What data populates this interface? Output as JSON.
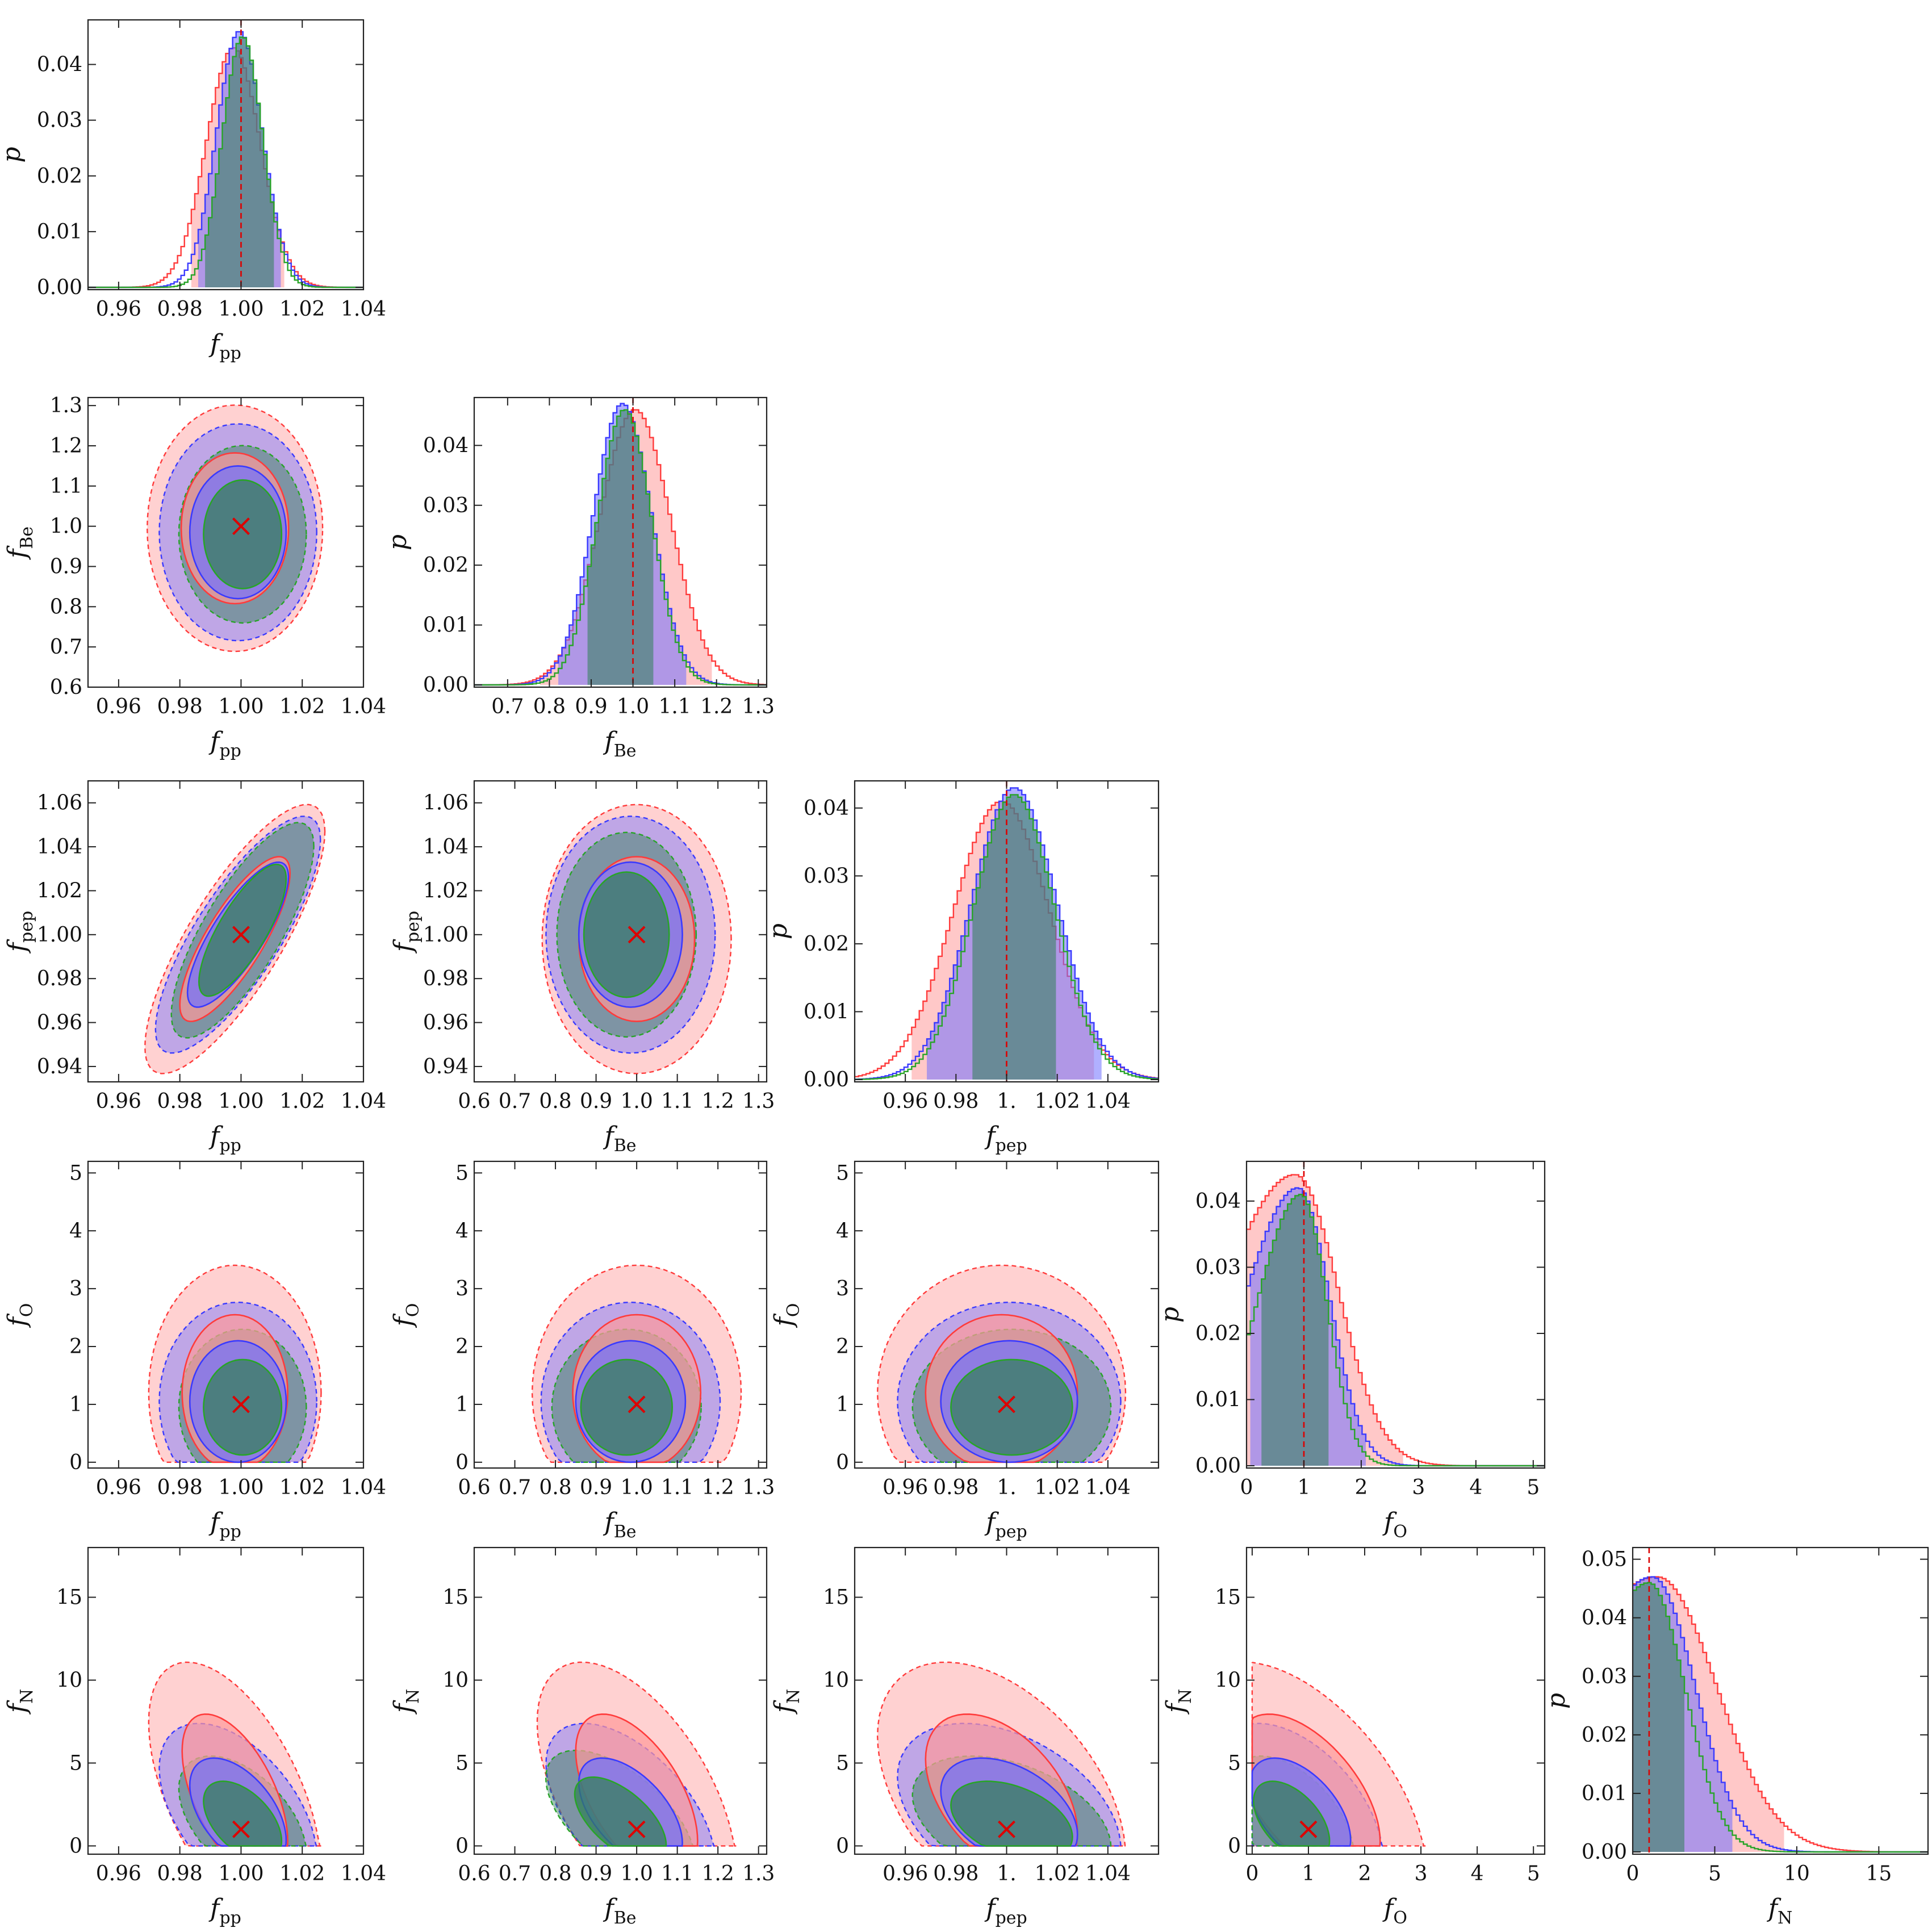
{
  "figure": {
    "colors": {
      "red": "#ff3b3b",
      "red_fill": "#ff9a9a",
      "blue": "#3a3aff",
      "blue_fill": "#7070ff",
      "green": "#28a428",
      "green_fill": "#2f7f55",
      "truth": "#dd0000"
    }
  },
  "chart_data": {
    "type": "corner",
    "parameters": [
      {
        "key": "pp",
        "symbol": "f",
        "sub": "pp",
        "truth": 1.0,
        "range": [
          0.95,
          1.04
        ],
        "ticks": [
          0.96,
          0.98,
          1.0,
          1.02,
          1.04
        ],
        "tick_labels": [
          "0.96",
          "0.98",
          "1.00",
          "1.02",
          "1.04"
        ],
        "diag_ticks": [
          0.96,
          0.98,
          1.0,
          1.02,
          1.04
        ],
        "diag_tick_labels": [
          "0.96",
          "0.98",
          "1.00",
          "1.02",
          "1.04"
        ]
      },
      {
        "key": "Be",
        "symbol": "f",
        "sub": "Be",
        "truth": 1.0,
        "range": [
          0.6,
          1.32
        ],
        "ticks": [
          0.6,
          0.7,
          0.8,
          0.9,
          1.0,
          1.1,
          1.2,
          1.3
        ],
        "tick_labels": [
          "0.6",
          "0.7",
          "0.8",
          "0.9",
          "1.0",
          "1.1",
          "1.2",
          "1.3"
        ],
        "diag_ticks": [
          0.7,
          0.8,
          0.9,
          1.0,
          1.1,
          1.2,
          1.3
        ],
        "diag_tick_labels": [
          "0.7",
          "0.8",
          "0.9",
          "1.0",
          "1.1",
          "1.2",
          "1.3"
        ],
        "diag_range": [
          0.62,
          1.32
        ],
        "y_range": [
          0.6,
          1.32
        ],
        "y_ticks": [
          0.6,
          0.7,
          0.8,
          0.9,
          1.0,
          1.1,
          1.2,
          1.3
        ],
        "y_tick_labels": [
          "0.6",
          "0.7",
          "0.8",
          "0.9",
          "1.0",
          "1.1",
          "1.2",
          "1.3"
        ]
      },
      {
        "key": "pep",
        "symbol": "f",
        "sub": "pep",
        "truth": 1.0,
        "range": [
          0.94,
          1.06
        ],
        "ticks": [
          0.96,
          0.98,
          1.0,
          1.02,
          1.04
        ],
        "tick_labels": [
          "0.96",
          "0.98",
          "1.",
          "1.02",
          "1.04"
        ],
        "diag_ticks": [
          0.96,
          0.98,
          1.0,
          1.02,
          1.04
        ],
        "diag_tick_labels": [
          "0.96",
          "0.98",
          "1.",
          "1.02",
          "1.04"
        ],
        "diag_range": [
          0.94,
          1.06
        ],
        "y_range": [
          0.933,
          1.07
        ],
        "y_ticks": [
          0.94,
          0.96,
          0.98,
          1.0,
          1.02,
          1.04,
          1.06
        ],
        "y_tick_labels": [
          "0.94",
          "0.96",
          "0.98",
          "1.00",
          "1.02",
          "1.04",
          "1.06"
        ]
      },
      {
        "key": "O",
        "symbol": "f",
        "sub": "O",
        "truth": 1.0,
        "range": [
          -0.1,
          5.2
        ],
        "ticks": [
          0,
          1,
          2,
          3,
          4,
          5
        ],
        "tick_labels": [
          "0",
          "1",
          "2",
          "3",
          "4",
          "5"
        ],
        "diag_ticks": [
          0,
          1,
          2,
          3,
          4,
          5
        ],
        "diag_tick_labels": [
          "0",
          "1",
          "2",
          "3",
          "4",
          "5"
        ],
        "diag_range": [
          0,
          5.2
        ],
        "y_range": [
          -0.1,
          5.2
        ],
        "y_ticks": [
          0,
          1,
          2,
          3,
          4,
          5
        ],
        "y_tick_labels": [
          "0",
          "1",
          "2",
          "3",
          "4",
          "5"
        ]
      },
      {
        "key": "N",
        "symbol": "f",
        "sub": "N",
        "truth": 1.0,
        "range": [
          -0.5,
          18
        ],
        "ticks": [
          0,
          5,
          10,
          15
        ],
        "tick_labels": [
          "0",
          "5",
          "10",
          "15"
        ],
        "diag_ticks": [
          0,
          5,
          10,
          15
        ],
        "diag_tick_labels": [
          "0",
          "5",
          "10",
          "15"
        ],
        "diag_range": [
          0,
          18
        ],
        "y_range": [
          -0.5,
          18
        ],
        "y_ticks": [
          0,
          5,
          10,
          15
        ],
        "y_tick_labels": [
          "0",
          "5",
          "10",
          "15"
        ]
      }
    ],
    "diagonal_ylabel": "p",
    "diagonal": [
      {
        "param": 0,
        "ymax": 0.048,
        "yticks": [
          0,
          0.01,
          0.02,
          0.03,
          0.04
        ],
        "ytick_labels": [
          "0.00",
          "0.01",
          "0.02",
          "0.03",
          "0.04"
        ],
        "series": [
          {
            "name": "red",
            "mean": 0.9975,
            "sd": 0.0088,
            "peak": 0.043,
            "ci": [
              0.9835,
              1.0145
            ]
          },
          {
            "name": "blue",
            "mean": 0.9995,
            "sd": 0.0075,
            "peak": 0.046,
            "ci": [
              0.9865,
              1.0125
            ]
          },
          {
            "name": "green",
            "mean": 1.0005,
            "sd": 0.0066,
            "peak": 0.045,
            "ci": [
              0.9885,
              1.0105
            ]
          }
        ]
      },
      {
        "param": 1,
        "ymax": 0.048,
        "yticks": [
          0,
          0.01,
          0.02,
          0.03,
          0.04
        ],
        "ytick_labels": [
          "0.00",
          "0.01",
          "0.02",
          "0.03",
          "0.04"
        ],
        "series": [
          {
            "name": "red",
            "mean": 1.005,
            "sd": 0.085,
            "peak": 0.046,
            "ci": [
              0.78,
              1.19
            ]
          },
          {
            "name": "blue",
            "mean": 0.975,
            "sd": 0.07,
            "peak": 0.047,
            "ci": [
              0.82,
              1.13
            ]
          },
          {
            "name": "green",
            "mean": 0.98,
            "sd": 0.065,
            "peak": 0.046,
            "ci": [
              0.89,
              1.05
            ]
          }
        ]
      },
      {
        "param": 2,
        "ymax": 0.044,
        "yticks": [
          0,
          0.01,
          0.02,
          0.03,
          0.04
        ],
        "ytick_labels": [
          "0.00",
          "0.01",
          "0.02",
          "0.03",
          "0.04"
        ],
        "series": [
          {
            "name": "red",
            "mean": 0.998,
            "sd": 0.019,
            "peak": 0.041,
            "ci": [
              0.963,
              1.034
            ]
          },
          {
            "name": "blue",
            "mean": 1.003,
            "sd": 0.017,
            "peak": 0.043,
            "ci": [
              0.968,
              1.038
            ]
          },
          {
            "name": "green",
            "mean": 1.003,
            "sd": 0.016,
            "peak": 0.042,
            "ci": [
              0.986,
              1.019
            ]
          }
        ]
      },
      {
        "param": 3,
        "ymax": 0.046,
        "yticks": [
          0,
          0.01,
          0.02,
          0.03,
          0.04
        ],
        "ytick_labels": [
          "0.00",
          "0.01",
          "0.02",
          "0.03",
          "0.04"
        ],
        "series": [
          {
            "name": "red",
            "mean": 0.85,
            "sd": 0.75,
            "peak": 0.044,
            "ci": [
              0.0,
              2.75
            ]
          },
          {
            "name": "blue",
            "mean": 0.9,
            "sd": 0.55,
            "peak": 0.042,
            "ci": [
              0.05,
              2.1
            ]
          },
          {
            "name": "green",
            "mean": 0.95,
            "sd": 0.45,
            "peak": 0.041,
            "ci": [
              0.25,
              1.45
            ]
          }
        ]
      },
      {
        "param": 4,
        "ymax": 0.052,
        "yticks": [
          0,
          0.01,
          0.02,
          0.03,
          0.04,
          0.05
        ],
        "ytick_labels": [
          "0.00",
          "0.01",
          "0.02",
          "0.03",
          "0.04",
          "0.05"
        ],
        "series": [
          {
            "name": "red",
            "mean": 1.5,
            "sd": 3.6,
            "peak": 0.047,
            "ci": [
              0.0,
              9.2
            ]
          },
          {
            "name": "blue",
            "mean": 1.2,
            "sd": 2.6,
            "peak": 0.047,
            "ci": [
              0.0,
              6.0
            ]
          },
          {
            "name": "green",
            "mean": 1.0,
            "sd": 2.2,
            "peak": 0.046,
            "ci": [
              0.0,
              3.2
            ]
          }
        ]
      }
    ],
    "contours": [
      {
        "x": 0,
        "y": 1,
        "regions": [
          {
            "name": "red",
            "cx": 0.998,
            "cy": 0.995,
            "sx": 0.0117,
            "sy": 0.125,
            "rho": 0.0
          },
          {
            "name": "blue",
            "cx": 0.999,
            "cy": 0.985,
            "sx": 0.0105,
            "sy": 0.11,
            "rho": 0.0
          },
          {
            "name": "green",
            "cx": 1.0005,
            "cy": 0.98,
            "sx": 0.0085,
            "sy": 0.09,
            "rho": 0.0
          }
        ]
      },
      {
        "x": 0,
        "y": 2,
        "regions": [
          {
            "name": "red",
            "cx": 0.998,
            "cy": 0.998,
            "sx": 0.012,
            "sy": 0.025,
            "rho": 0.8
          },
          {
            "name": "blue",
            "cx": 0.999,
            "cy": 1.0,
            "sx": 0.011,
            "sy": 0.022,
            "rho": 0.8
          },
          {
            "name": "green",
            "cx": 1.0005,
            "cy": 1.002,
            "sx": 0.0095,
            "sy": 0.02,
            "rho": 0.78
          }
        ]
      },
      {
        "x": 1,
        "y": 2,
        "regions": [
          {
            "name": "red",
            "cx": 1.0,
            "cy": 0.998,
            "sx": 0.095,
            "sy": 0.025,
            "rho": 0.0
          },
          {
            "name": "blue",
            "cx": 0.985,
            "cy": 1.0,
            "sx": 0.085,
            "sy": 0.022,
            "rho": 0.0
          },
          {
            "name": "green",
            "cx": 0.975,
            "cy": 1.0,
            "sx": 0.07,
            "sy": 0.019,
            "rho": 0.0
          }
        ]
      },
      {
        "x": 0,
        "y": 3,
        "regions": [
          {
            "name": "red",
            "cx": 0.998,
            "cy": 1.2,
            "sx": 0.0115,
            "sy": 0.9,
            "rho": 0.0
          },
          {
            "name": "blue",
            "cx": 0.999,
            "cy": 1.05,
            "sx": 0.0105,
            "sy": 0.7,
            "rho": 0.0
          },
          {
            "name": "green",
            "cx": 1.0005,
            "cy": 0.95,
            "sx": 0.0085,
            "sy": 0.55,
            "rho": 0.0
          }
        ]
      },
      {
        "x": 1,
        "y": 3,
        "regions": [
          {
            "name": "red",
            "cx": 1.0,
            "cy": 1.2,
            "sx": 0.105,
            "sy": 0.9,
            "rho": 0.0
          },
          {
            "name": "blue",
            "cx": 0.985,
            "cy": 1.05,
            "sx": 0.09,
            "sy": 0.7,
            "rho": 0.0
          },
          {
            "name": "green",
            "cx": 0.975,
            "cy": 0.95,
            "sx": 0.075,
            "sy": 0.55,
            "rho": 0.0
          }
        ]
      },
      {
        "x": 2,
        "y": 3,
        "regions": [
          {
            "name": "red",
            "cx": 0.998,
            "cy": 1.2,
            "sx": 0.02,
            "sy": 0.9,
            "rho": 0.0
          },
          {
            "name": "blue",
            "cx": 1.001,
            "cy": 1.05,
            "sx": 0.018,
            "sy": 0.7,
            "rho": 0.0
          },
          {
            "name": "green",
            "cx": 1.002,
            "cy": 0.95,
            "sx": 0.016,
            "sy": 0.55,
            "rho": 0.0
          }
        ]
      },
      {
        "x": 3,
        "y": 4,
        "regions": [
          {
            "name": "red",
            "cx": 1.0,
            "cy": 3.0,
            "sx": 0.85,
            "sy": 3.3,
            "rho": -0.55
          },
          {
            "name": "blue",
            "cx": 0.85,
            "cy": 2.0,
            "sx": 0.6,
            "sy": 2.2,
            "rho": -0.5
          },
          {
            "name": "green",
            "cx": 0.7,
            "cy": 1.5,
            "sx": 0.45,
            "sy": 1.6,
            "rho": -0.5
          }
        ]
      },
      {
        "x": 0,
        "y": 4,
        "regions": [
          {
            "name": "red",
            "cx": 0.998,
            "cy": 3.0,
            "sx": 0.0115,
            "sy": 3.3,
            "rho": -0.55
          },
          {
            "name": "blue",
            "cx": 0.999,
            "cy": 2.0,
            "sx": 0.0105,
            "sy": 2.2,
            "rho": -0.5
          },
          {
            "name": "green",
            "cx": 1.0005,
            "cy": 1.5,
            "sx": 0.0085,
            "sy": 1.6,
            "rho": -0.5
          }
        ]
      },
      {
        "x": 1,
        "y": 4,
        "regions": [
          {
            "name": "red",
            "cx": 1.0,
            "cy": 3.0,
            "sx": 0.1,
            "sy": 3.3,
            "rho": -0.55
          },
          {
            "name": "blue",
            "cx": 0.985,
            "cy": 2.0,
            "sx": 0.085,
            "sy": 2.2,
            "rho": -0.55
          },
          {
            "name": "green",
            "cx": 0.96,
            "cy": 1.6,
            "sx": 0.075,
            "sy": 1.7,
            "rho": -0.6
          }
        ]
      },
      {
        "x": 2,
        "y": 4,
        "regions": [
          {
            "name": "red",
            "cx": 0.998,
            "cy": 3.0,
            "sx": 0.02,
            "sy": 3.3,
            "rho": -0.45
          },
          {
            "name": "blue",
            "cx": 1.001,
            "cy": 2.0,
            "sx": 0.018,
            "sy": 2.2,
            "rho": -0.4
          },
          {
            "name": "green",
            "cx": 1.002,
            "cy": 1.5,
            "sx": 0.016,
            "sy": 1.6,
            "rho": -0.4
          }
        ]
      }
    ]
  }
}
